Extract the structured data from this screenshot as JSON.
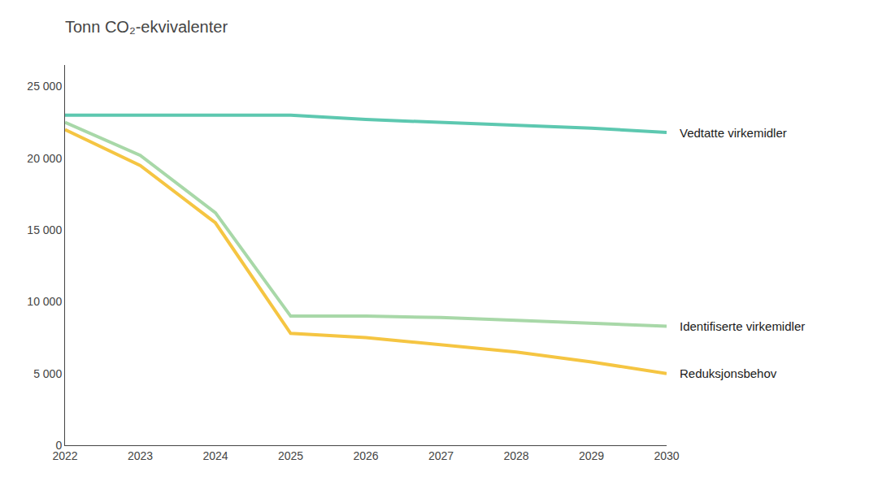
{
  "chart_data": {
    "type": "line",
    "title": "Tonn CO₂-ekvivalenter",
    "x": [
      2022,
      2023,
      2024,
      2025,
      2026,
      2027,
      2028,
      2029,
      2030
    ],
    "series": [
      {
        "name": "Vedtatte virkemidler",
        "color": "#5dc8b0",
        "values": [
          23000,
          23000,
          23000,
          23000,
          22700,
          22500,
          22300,
          22100,
          21800
        ]
      },
      {
        "name": "Identifiserte virkemidler",
        "color": "#a8d8a8",
        "values": [
          22500,
          20200,
          16200,
          9000,
          9000,
          8900,
          8700,
          8500,
          8300
        ]
      },
      {
        "name": "Reduksjonsbehov",
        "color": "#f5c542",
        "values": [
          22000,
          19500,
          15500,
          7800,
          7500,
          7000,
          6500,
          5800,
          5000
        ]
      }
    ],
    "xlim": [
      2022,
      2030
    ],
    "xticks": [
      2022,
      2023,
      2024,
      2025,
      2026,
      2027,
      2028,
      2029,
      2030
    ],
    "ylim": [
      0,
      26500
    ],
    "yticks": [
      0,
      {
        "value": 5000,
        "label": "5 000"
      },
      {
        "value": 10000,
        "label": "10 000"
      },
      {
        "value": 15000,
        "label": "15 000"
      },
      {
        "value": 20000,
        "label": "20 000"
      },
      {
        "value": 25000,
        "label": "25 000"
      }
    ],
    "grid": false
  }
}
